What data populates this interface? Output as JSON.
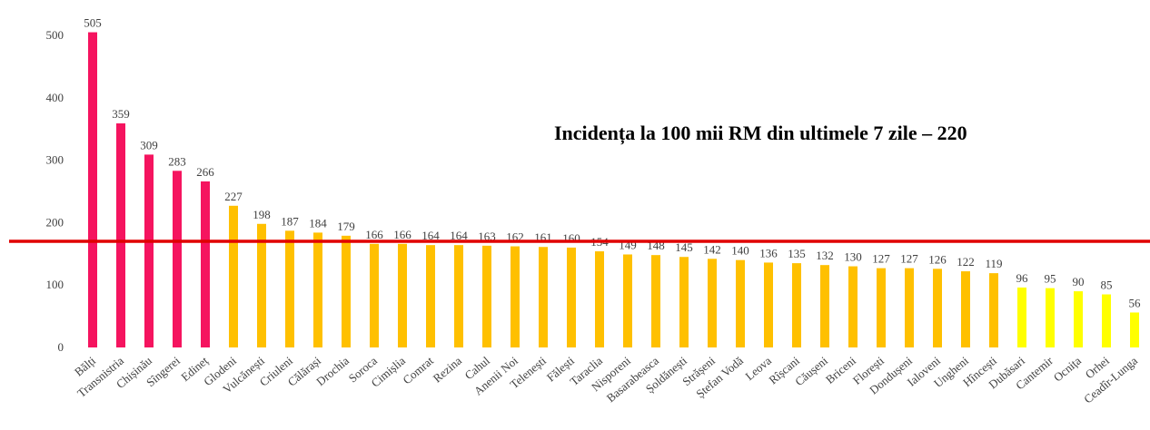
{
  "chart_data": {
    "type": "bar",
    "annotation": "Incidența la 100 mii RM din ultimele 7 zile – 220",
    "categories": [
      "Bălți",
      "Transnistria",
      "Chișinău",
      "Sîngerei",
      "Edineț",
      "Glodeni",
      "Vulcănești",
      "Criuleni",
      "Călărași",
      "Drochia",
      "Soroca",
      "Cimișlia",
      "Comrat",
      "Rezina",
      "Cahul",
      "Anenii Noi",
      "Telenești",
      "Fălești",
      "Taraclia",
      "Nisporeni",
      "Basarabeasca",
      "Șoldănești",
      "Strășeni",
      "Ștefan Vodă",
      "Leova",
      "Rîșcani",
      "Căușeni",
      "Briceni",
      "Florești",
      "Dondușeni",
      "Ialoveni",
      "Ungheni",
      "Hîncești",
      "Dubăsari",
      "Cantemir",
      "Ocnița",
      "Orhei",
      "Ceadîr-Lunga"
    ],
    "values": [
      505,
      359,
      309,
      283,
      266,
      227,
      198,
      187,
      184,
      179,
      166,
      166,
      164,
      164,
      163,
      162,
      161,
      160,
      154,
      149,
      148,
      145,
      142,
      140,
      136,
      135,
      132,
      130,
      127,
      127,
      126,
      122,
      119,
      96,
      95,
      90,
      85,
      56
    ],
    "colors": [
      "#f5145f",
      "#f5145f",
      "#f5145f",
      "#f5145f",
      "#f5145f",
      "#ffc000",
      "#ffc000",
      "#ffc000",
      "#ffc000",
      "#ffc000",
      "#ffc000",
      "#ffc000",
      "#ffc000",
      "#ffc000",
      "#ffc000",
      "#ffc000",
      "#ffc000",
      "#ffc000",
      "#ffc000",
      "#ffc000",
      "#ffc000",
      "#ffc000",
      "#ffc000",
      "#ffc000",
      "#ffc000",
      "#ffc000",
      "#ffc000",
      "#ffc000",
      "#ffc000",
      "#ffc000",
      "#ffc000",
      "#ffc000",
      "#ffc000",
      "#ffff00",
      "#ffff00",
      "#ffff00",
      "#ffff00",
      "#ffff00"
    ],
    "reference_line": 170,
    "reference_color": "#e00000",
    "ylim": [
      0,
      500
    ],
    "yticks": [
      0,
      100,
      200,
      300,
      400,
      500
    ],
    "grid": false
  }
}
